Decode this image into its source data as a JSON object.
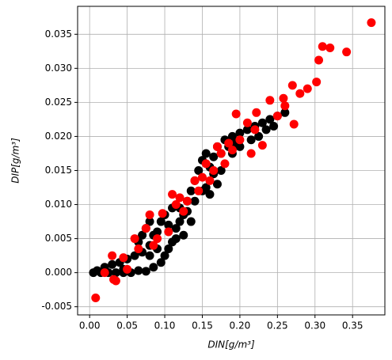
{
  "chart_data": {
    "type": "scatter",
    "x_label": "DIN[g/m³]",
    "y_label": "DIP[g/m³]",
    "xlim": [
      -0.016,
      0.393
    ],
    "ylim": [
      -0.0062,
      0.0391
    ],
    "grid": true,
    "xticks": [
      {
        "value": 0,
        "label": "0.00"
      },
      0.05,
      {
        "value": 0.1,
        "label": "0.10"
      },
      0.15,
      {
        "value": 0.2,
        "label": "0.20"
      },
      0.25,
      {
        "value": 0.3,
        "label": "0.30"
      },
      0.35
    ],
    "yticks": [
      -0.005,
      {
        "value": 0,
        "label": "0.000"
      },
      0.005,
      {
        "value": 0.01,
        "label": "0.010"
      },
      0.015,
      {
        "value": 0.02,
        "label": "0.020"
      },
      0.025,
      {
        "value": 0.03,
        "label": "0.030"
      },
      0.035
    ],
    "series": [
      {
        "color": "#000000",
        "x": [
          0.005,
          0.015,
          0.025,
          0.035,
          0.045,
          0.055,
          0.065,
          0.02,
          0.03,
          0.04,
          0.05,
          0.06,
          0.07,
          0.075,
          0.085,
          0.095,
          0.1,
          0.105,
          0.11,
          0.08,
          0.085,
          0.09,
          0.065,
          0.07,
          0.075,
          0.08,
          0.095,
          0.1,
          0.11,
          0.115,
          0.12,
          0.125,
          0.13,
          0.135,
          0.14,
          0.13,
          0.14,
          0.15,
          0.145,
          0.15,
          0.155,
          0.16,
          0.165,
          0.17,
          0.175,
          0.18,
          0.185,
          0.19,
          0.195,
          0.2,
          0.21,
          0.22,
          0.23,
          0.24,
          0.25,
          0.26,
          0.215,
          0.225,
          0.235,
          0.245,
          0.16,
          0.17,
          0.175,
          0.165,
          0.155,
          0.125,
          0.115,
          0.105,
          0.12,
          0.135,
          0.2,
          0.19,
          0.045,
          0.01,
          0.09,
          0.08
        ],
        "y": [
          0,
          0,
          0,
          0,
          0,
          0,
          0.0003,
          0.0008,
          0.0012,
          0.0015,
          0.002,
          0.0025,
          0.003,
          0.0002,
          0.0008,
          0.0015,
          0.0025,
          0.0035,
          0.0045,
          0.004,
          0.0055,
          0.006,
          0.0045,
          0.0055,
          0.0065,
          0.0075,
          0.0075,
          0.0085,
          0.0095,
          0.0065,
          0.0075,
          0.0085,
          0.0105,
          0.012,
          0.0135,
          0.009,
          0.0105,
          0.012,
          0.015,
          0.0165,
          0.0175,
          0.0155,
          0.017,
          0.0185,
          0.0175,
          0.0195,
          0.0185,
          0.02,
          0.019,
          0.0205,
          0.021,
          0.0215,
          0.022,
          0.0225,
          0.023,
          0.0235,
          0.0195,
          0.02,
          0.021,
          0.0215,
          0.0115,
          0.013,
          0.015,
          0.0145,
          0.0125,
          0.0055,
          0.005,
          0.007,
          0.0095,
          0.0075,
          0.0185,
          0.0175,
          0.0005,
          0.0003,
          0.0035,
          0.0025
        ]
      },
      {
        "color": "#ff0000",
        "x": [
          0.008,
          0.02,
          0.03,
          0.035,
          0.032,
          0.045,
          0.05,
          0.06,
          0.065,
          0.075,
          0.08,
          0.085,
          0.09,
          0.097,
          0.105,
          0.11,
          0.115,
          0.12,
          0.125,
          0.13,
          0.14,
          0.145,
          0.15,
          0.155,
          0.16,
          0.165,
          0.17,
          0.175,
          0.18,
          0.185,
          0.19,
          0.195,
          0.2,
          0.21,
          0.215,
          0.22,
          0.222,
          0.23,
          0.24,
          0.25,
          0.258,
          0.26,
          0.27,
          0.272,
          0.28,
          0.29,
          0.302,
          0.305,
          0.31,
          0.32,
          0.342,
          0.375
        ],
        "y": [
          -0.0037,
          0,
          0.0025,
          -0.0012,
          -0.001,
          0.0022,
          0.0005,
          0.005,
          0.0035,
          0.0065,
          0.0085,
          0.004,
          0.005,
          0.0087,
          0.006,
          0.0115,
          0.01,
          0.011,
          0.009,
          0.0105,
          0.0135,
          0.012,
          0.014,
          0.016,
          0.0135,
          0.015,
          0.0185,
          0.0175,
          0.016,
          0.019,
          0.018,
          0.0233,
          0.0195,
          0.022,
          0.0175,
          0.021,
          0.0235,
          0.0187,
          0.0253,
          0.023,
          0.0256,
          0.0245,
          0.0275,
          0.0218,
          0.0263,
          0.027,
          0.028,
          0.0312,
          0.0332,
          0.033,
          0.0324,
          0.0367
        ]
      }
    ]
  }
}
